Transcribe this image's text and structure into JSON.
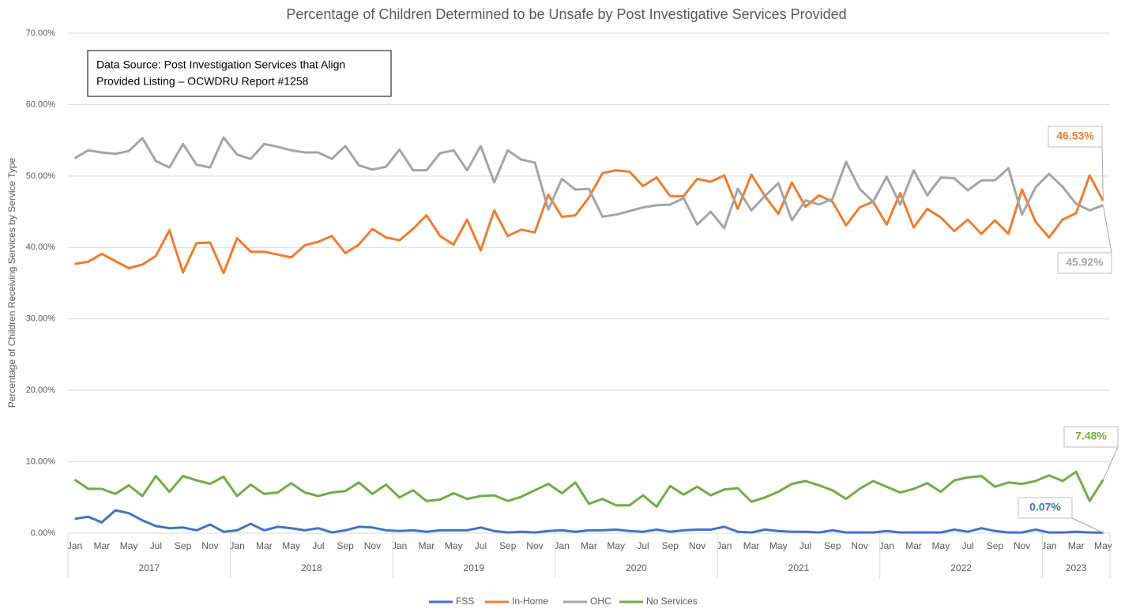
{
  "chart_data": {
    "type": "line",
    "title": "Percentage of Children Determined to be Unsafe by Post Investigative Services Provided",
    "y_axis_label": "Percentage of Children Receiving Services by Service Type",
    "annotation": [
      "Data Source: Post Investigation Services that Align",
      "Provided Listing – OCWDRU Report #1258"
    ],
    "categories": [
      "Jan",
      null,
      "Mar",
      null,
      "May",
      null,
      "Jul",
      null,
      "Sep",
      null,
      "Nov",
      null,
      "Jan",
      null,
      "Mar",
      null,
      "May",
      null,
      "Jul",
      null,
      "Sep",
      null,
      "Nov",
      null,
      "Jan",
      null,
      "Mar",
      null,
      "May",
      null,
      "Jul",
      null,
      "Sep",
      null,
      "Nov",
      null,
      "Jan",
      null,
      "Mar",
      null,
      "May",
      null,
      "Jul",
      null,
      "Sep",
      null,
      "Nov",
      null,
      "Jan",
      null,
      "Mar",
      null,
      "May",
      null,
      "Jul",
      null,
      "Sep",
      null,
      "Nov",
      null,
      "Jan",
      null,
      "Mar",
      null,
      "May",
      null,
      "Jul",
      null,
      "Sep",
      null,
      "Nov",
      null,
      "Jan",
      null,
      "Mar",
      null,
      "May"
    ],
    "year_labels": [
      "2017",
      "2018",
      "2019",
      "2020",
      "2021",
      "2022",
      "2023"
    ],
    "ylim": [
      0,
      70
    ],
    "yticks": [
      {
        "value": 0,
        "label": "0.00%"
      },
      {
        "value": 10,
        "label": "10.00%"
      },
      {
        "value": 20,
        "label": "20.00%"
      },
      {
        "value": 30,
        "label": "30.00%"
      },
      {
        "value": 40,
        "label": "40.00%"
      },
      {
        "value": 50,
        "label": "50.00%"
      },
      {
        "value": 60,
        "label": "60.00%"
      },
      {
        "value": 70,
        "label": "70.00%"
      }
    ],
    "grid": true,
    "legend": "bottom",
    "series": [
      {
        "name": "FSS",
        "color": "#4472c4",
        "end_label": "0.07%",
        "values": [
          2.0,
          2.3,
          1.5,
          3.2,
          2.8,
          1.8,
          1.0,
          0.7,
          0.8,
          0.4,
          1.2,
          0.2,
          0.4,
          1.3,
          0.4,
          0.9,
          0.7,
          0.4,
          0.7,
          0.1,
          0.4,
          0.9,
          0.8,
          0.4,
          0.3,
          0.4,
          0.2,
          0.4,
          0.4,
          0.4,
          0.8,
          0.3,
          0.1,
          0.2,
          0.1,
          0.3,
          0.4,
          0.2,
          0.4,
          0.4,
          0.5,
          0.3,
          0.2,
          0.5,
          0.2,
          0.4,
          0.5,
          0.5,
          0.9,
          0.2,
          0.1,
          0.5,
          0.3,
          0.2,
          0.2,
          0.1,
          0.4,
          0.1,
          0.1,
          0.1,
          0.3,
          0.1,
          0.1,
          0.1,
          0.1,
          0.5,
          0.2,
          0.7,
          0.3,
          0.1,
          0.1,
          0.5,
          0.1,
          0.1,
          0.2,
          0.1,
          0.07
        ]
      },
      {
        "name": "In-Home",
        "color": "#ed7d31",
        "end_label": "46.53%",
        "values": [
          37.7,
          38.0,
          39.1,
          38.1,
          37.1,
          37.6,
          38.8,
          42.4,
          36.5,
          40.6,
          40.7,
          36.4,
          41.3,
          39.4,
          39.4,
          39.0,
          38.6,
          40.3,
          40.8,
          41.6,
          39.2,
          40.4,
          42.6,
          41.4,
          41.0,
          42.6,
          44.5,
          41.6,
          40.4,
          43.9,
          39.6,
          45.2,
          41.6,
          42.5,
          42.1,
          47.4,
          44.3,
          44.5,
          47.0,
          50.4,
          50.8,
          50.6,
          48.6,
          49.8,
          47.2,
          47.2,
          49.6,
          49.2,
          50.1,
          45.4,
          50.2,
          47.2,
          44.7,
          49.1,
          45.7,
          47.3,
          46.4,
          43.1,
          45.6,
          46.4,
          43.2,
          47.6,
          42.8,
          45.4,
          44.2,
          42.3,
          43.9,
          41.9,
          43.8,
          41.9,
          48.1,
          43.6,
          41.4,
          43.9,
          44.8,
          50.1,
          46.53
        ]
      },
      {
        "name": "OHC",
        "color": "#a5a5a5",
        "end_label": "45.92%",
        "values": [
          52.5,
          53.6,
          53.3,
          53.1,
          53.5,
          55.3,
          52.1,
          51.2,
          54.5,
          51.6,
          51.2,
          55.4,
          53.0,
          52.4,
          54.5,
          54.1,
          53.6,
          53.3,
          53.3,
          52.4,
          54.2,
          51.5,
          50.9,
          51.3,
          53.7,
          50.8,
          50.8,
          53.2,
          53.6,
          50.8,
          54.2,
          49.1,
          53.6,
          52.3,
          51.9,
          45.3,
          49.6,
          48.1,
          48.2,
          44.3,
          44.6,
          45.1,
          45.6,
          45.9,
          46.0,
          46.9,
          43.2,
          45.0,
          42.7,
          48.2,
          45.2,
          47.2,
          49.0,
          43.8,
          46.6,
          46.0,
          46.8,
          52.0,
          48.2,
          46.4,
          49.9,
          46.0,
          50.8,
          47.3,
          49.8,
          49.7,
          48.0,
          49.4,
          49.4,
          51.1,
          44.6,
          48.4,
          50.3,
          48.5,
          46.1,
          45.2,
          45.92
        ]
      },
      {
        "name": "No Services",
        "color": "#70ad47",
        "end_label": "7.48%",
        "values": [
          7.5,
          6.2,
          6.2,
          5.5,
          6.7,
          5.2,
          8.0,
          5.8,
          8.0,
          7.4,
          6.9,
          7.9,
          5.2,
          6.8,
          5.5,
          5.7,
          7.0,
          5.7,
          5.2,
          5.7,
          5.9,
          7.1,
          5.5,
          6.8,
          5.0,
          6.0,
          4.5,
          4.7,
          5.6,
          4.8,
          5.2,
          5.3,
          4.5,
          5.1,
          6.0,
          6.9,
          5.6,
          7.1,
          4.1,
          4.8,
          3.9,
          3.9,
          5.3,
          3.7,
          6.6,
          5.4,
          6.5,
          5.3,
          6.1,
          6.3,
          4.4,
          5.0,
          5.8,
          6.9,
          7.3,
          6.7,
          6.0,
          4.8,
          6.2,
          7.3,
          6.5,
          5.7,
          6.2,
          7.0,
          5.8,
          7.4,
          7.8,
          8.0,
          6.5,
          7.1,
          6.9,
          7.3,
          8.1,
          7.3,
          8.6,
          4.5,
          7.48
        ]
      }
    ]
  }
}
